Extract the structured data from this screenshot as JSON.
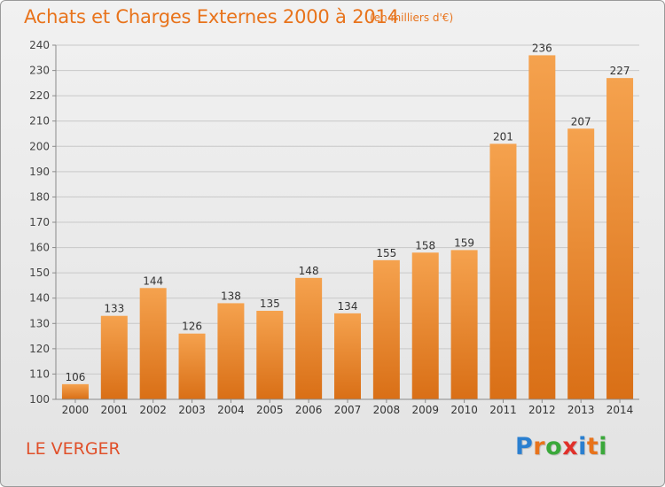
{
  "header": {
    "title": "Achats et Charges Externes 2000 à 2014",
    "subtitle": "(en milliers d'€)"
  },
  "footer": {
    "commune": "LE VERGER",
    "logo_text": "Proxiti",
    "logo_colors": [
      "#2a7fd0",
      "#e8731b",
      "#3aa83a",
      "#e0302a",
      "#2a7fd0",
      "#e8731b",
      "#3aa83a"
    ]
  },
  "colors": {
    "bar_top": "#f5a24e",
    "bar_bottom": "#d96f16",
    "title": "#e8731b",
    "commune": "#e0502a"
  },
  "chart_data": {
    "type": "bar",
    "categories": [
      "2000",
      "2001",
      "2002",
      "2003",
      "2004",
      "2005",
      "2006",
      "2007",
      "2008",
      "2009",
      "2010",
      "2011",
      "2012",
      "2013",
      "2014"
    ],
    "values": [
      106,
      133,
      144,
      126,
      138,
      135,
      148,
      134,
      155,
      158,
      159,
      201,
      236,
      207,
      227
    ],
    "ylim": [
      100,
      240
    ],
    "yticks": [
      100,
      110,
      120,
      130,
      140,
      150,
      160,
      170,
      180,
      190,
      200,
      210,
      220,
      230,
      240
    ],
    "grid": true,
    "data_labels": true
  }
}
